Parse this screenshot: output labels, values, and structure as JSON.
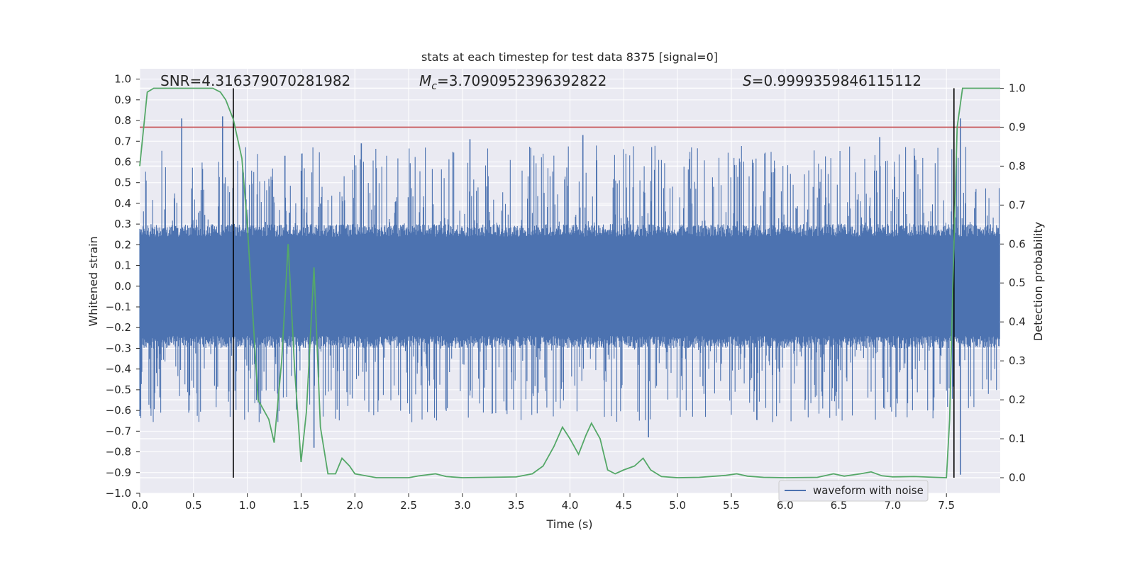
{
  "chart_data": {
    "type": "line",
    "title": "stats at each timestep for test data 8375 [signal=0]",
    "xlabel": "Time (s)",
    "ylabel": "Whitened strain",
    "ylabel_right": "Detection probability",
    "xlim": [
      0.0,
      8.0
    ],
    "ylim": [
      -1.0,
      1.05
    ],
    "ylim_right": [
      -0.04,
      1.05
    ],
    "xticks": [
      "0.0",
      "0.5",
      "1.0",
      "1.5",
      "2.0",
      "2.5",
      "3.0",
      "3.5",
      "4.0",
      "4.5",
      "5.0",
      "5.5",
      "6.0",
      "6.5",
      "7.0",
      "7.5"
    ],
    "yticks_left": [
      "1.0",
      "0.9",
      "0.8",
      "0.7",
      "0.6",
      "0.5",
      "0.4",
      "0.3",
      "0.2",
      "0.1",
      "0.0",
      "−0.1",
      "−0.2",
      "−0.3",
      "−0.4",
      "−0.5",
      "−0.6",
      "−0.7",
      "−0.8",
      "−0.9",
      "−1.0"
    ],
    "yticks_right": [
      "1.0",
      "0.9",
      "0.8",
      "0.7",
      "0.6",
      "0.5",
      "0.4",
      "0.3",
      "0.2",
      "0.1",
      "0.0"
    ],
    "annotations": {
      "snr": "SNR=4.316379070281982",
      "mc_symbol": "M",
      "mc_sub": "c",
      "mc_value": "=3.7090952396392822",
      "s_symbol": "S",
      "s_value": "=0.9999359846115112"
    },
    "legend": {
      "label": "waveform with noise",
      "loc": "lower-right"
    },
    "threshold": {
      "value": 0.9,
      "axis": "right",
      "color": "#c44e52"
    },
    "vertical_lines": [
      0.87,
      7.57
    ],
    "series": [
      {
        "name": "waveform with noise",
        "axis": "left",
        "color": "#4c72b0",
        "description": "whitened strain, dense noise band approx ±0.25 with spikes to ±0.8",
        "peaks": [
          {
            "x": 0.39,
            "y": 0.81
          },
          {
            "x": 0.77,
            "y": 0.82
          },
          {
            "x": 1.35,
            "y": 0.63
          },
          {
            "x": 2.06,
            "y": 0.69
          },
          {
            "x": 3.07,
            "y": 0.71
          },
          {
            "x": 4.12,
            "y": 0.73
          },
          {
            "x": 6.88,
            "y": 0.72
          },
          {
            "x": 7.63,
            "y": 0.81
          },
          {
            "x": 1.62,
            "y": -0.78
          },
          {
            "x": 4.73,
            "y": -0.73
          },
          {
            "x": 7.63,
            "y": -0.91
          }
        ]
      },
      {
        "name": "detection probability",
        "axis": "right",
        "color": "#55a868",
        "x": [
          0.0,
          0.07,
          0.13,
          0.25,
          0.4,
          0.55,
          0.68,
          0.75,
          0.8,
          0.87,
          0.95,
          1.0,
          1.1,
          1.2,
          1.25,
          1.32,
          1.38,
          1.44,
          1.5,
          1.55,
          1.62,
          1.68,
          1.75,
          1.82,
          1.88,
          1.95,
          2.0,
          2.2,
          2.5,
          2.6,
          2.75,
          2.85,
          3.0,
          3.5,
          3.65,
          3.75,
          3.85,
          3.93,
          4.0,
          4.08,
          4.15,
          4.2,
          4.28,
          4.35,
          4.42,
          4.5,
          4.6,
          4.68,
          4.75,
          4.85,
          5.0,
          5.2,
          5.45,
          5.55,
          5.65,
          5.8,
          6.0,
          6.3,
          6.45,
          6.55,
          6.7,
          6.8,
          6.9,
          7.0,
          7.2,
          7.4,
          7.5,
          7.53,
          7.56,
          7.6,
          7.65,
          7.7,
          8.0
        ],
        "y": [
          0.8,
          0.99,
          1.0,
          1.0,
          1.0,
          1.0,
          1.0,
          0.99,
          0.97,
          0.92,
          0.82,
          0.65,
          0.2,
          0.15,
          0.09,
          0.3,
          0.6,
          0.28,
          0.04,
          0.17,
          0.54,
          0.13,
          0.01,
          0.01,
          0.05,
          0.03,
          0.01,
          0.0,
          0.0,
          0.005,
          0.01,
          0.003,
          0.0,
          0.002,
          0.01,
          0.03,
          0.08,
          0.13,
          0.1,
          0.06,
          0.11,
          0.14,
          0.1,
          0.02,
          0.01,
          0.02,
          0.03,
          0.05,
          0.02,
          0.003,
          0.0,
          0.001,
          0.006,
          0.01,
          0.004,
          0.001,
          0.0,
          0.001,
          0.01,
          0.004,
          0.01,
          0.015,
          0.005,
          0.002,
          0.003,
          0.001,
          0.0,
          0.15,
          0.5,
          0.9,
          1.0,
          1.0,
          1.0
        ]
      }
    ]
  }
}
